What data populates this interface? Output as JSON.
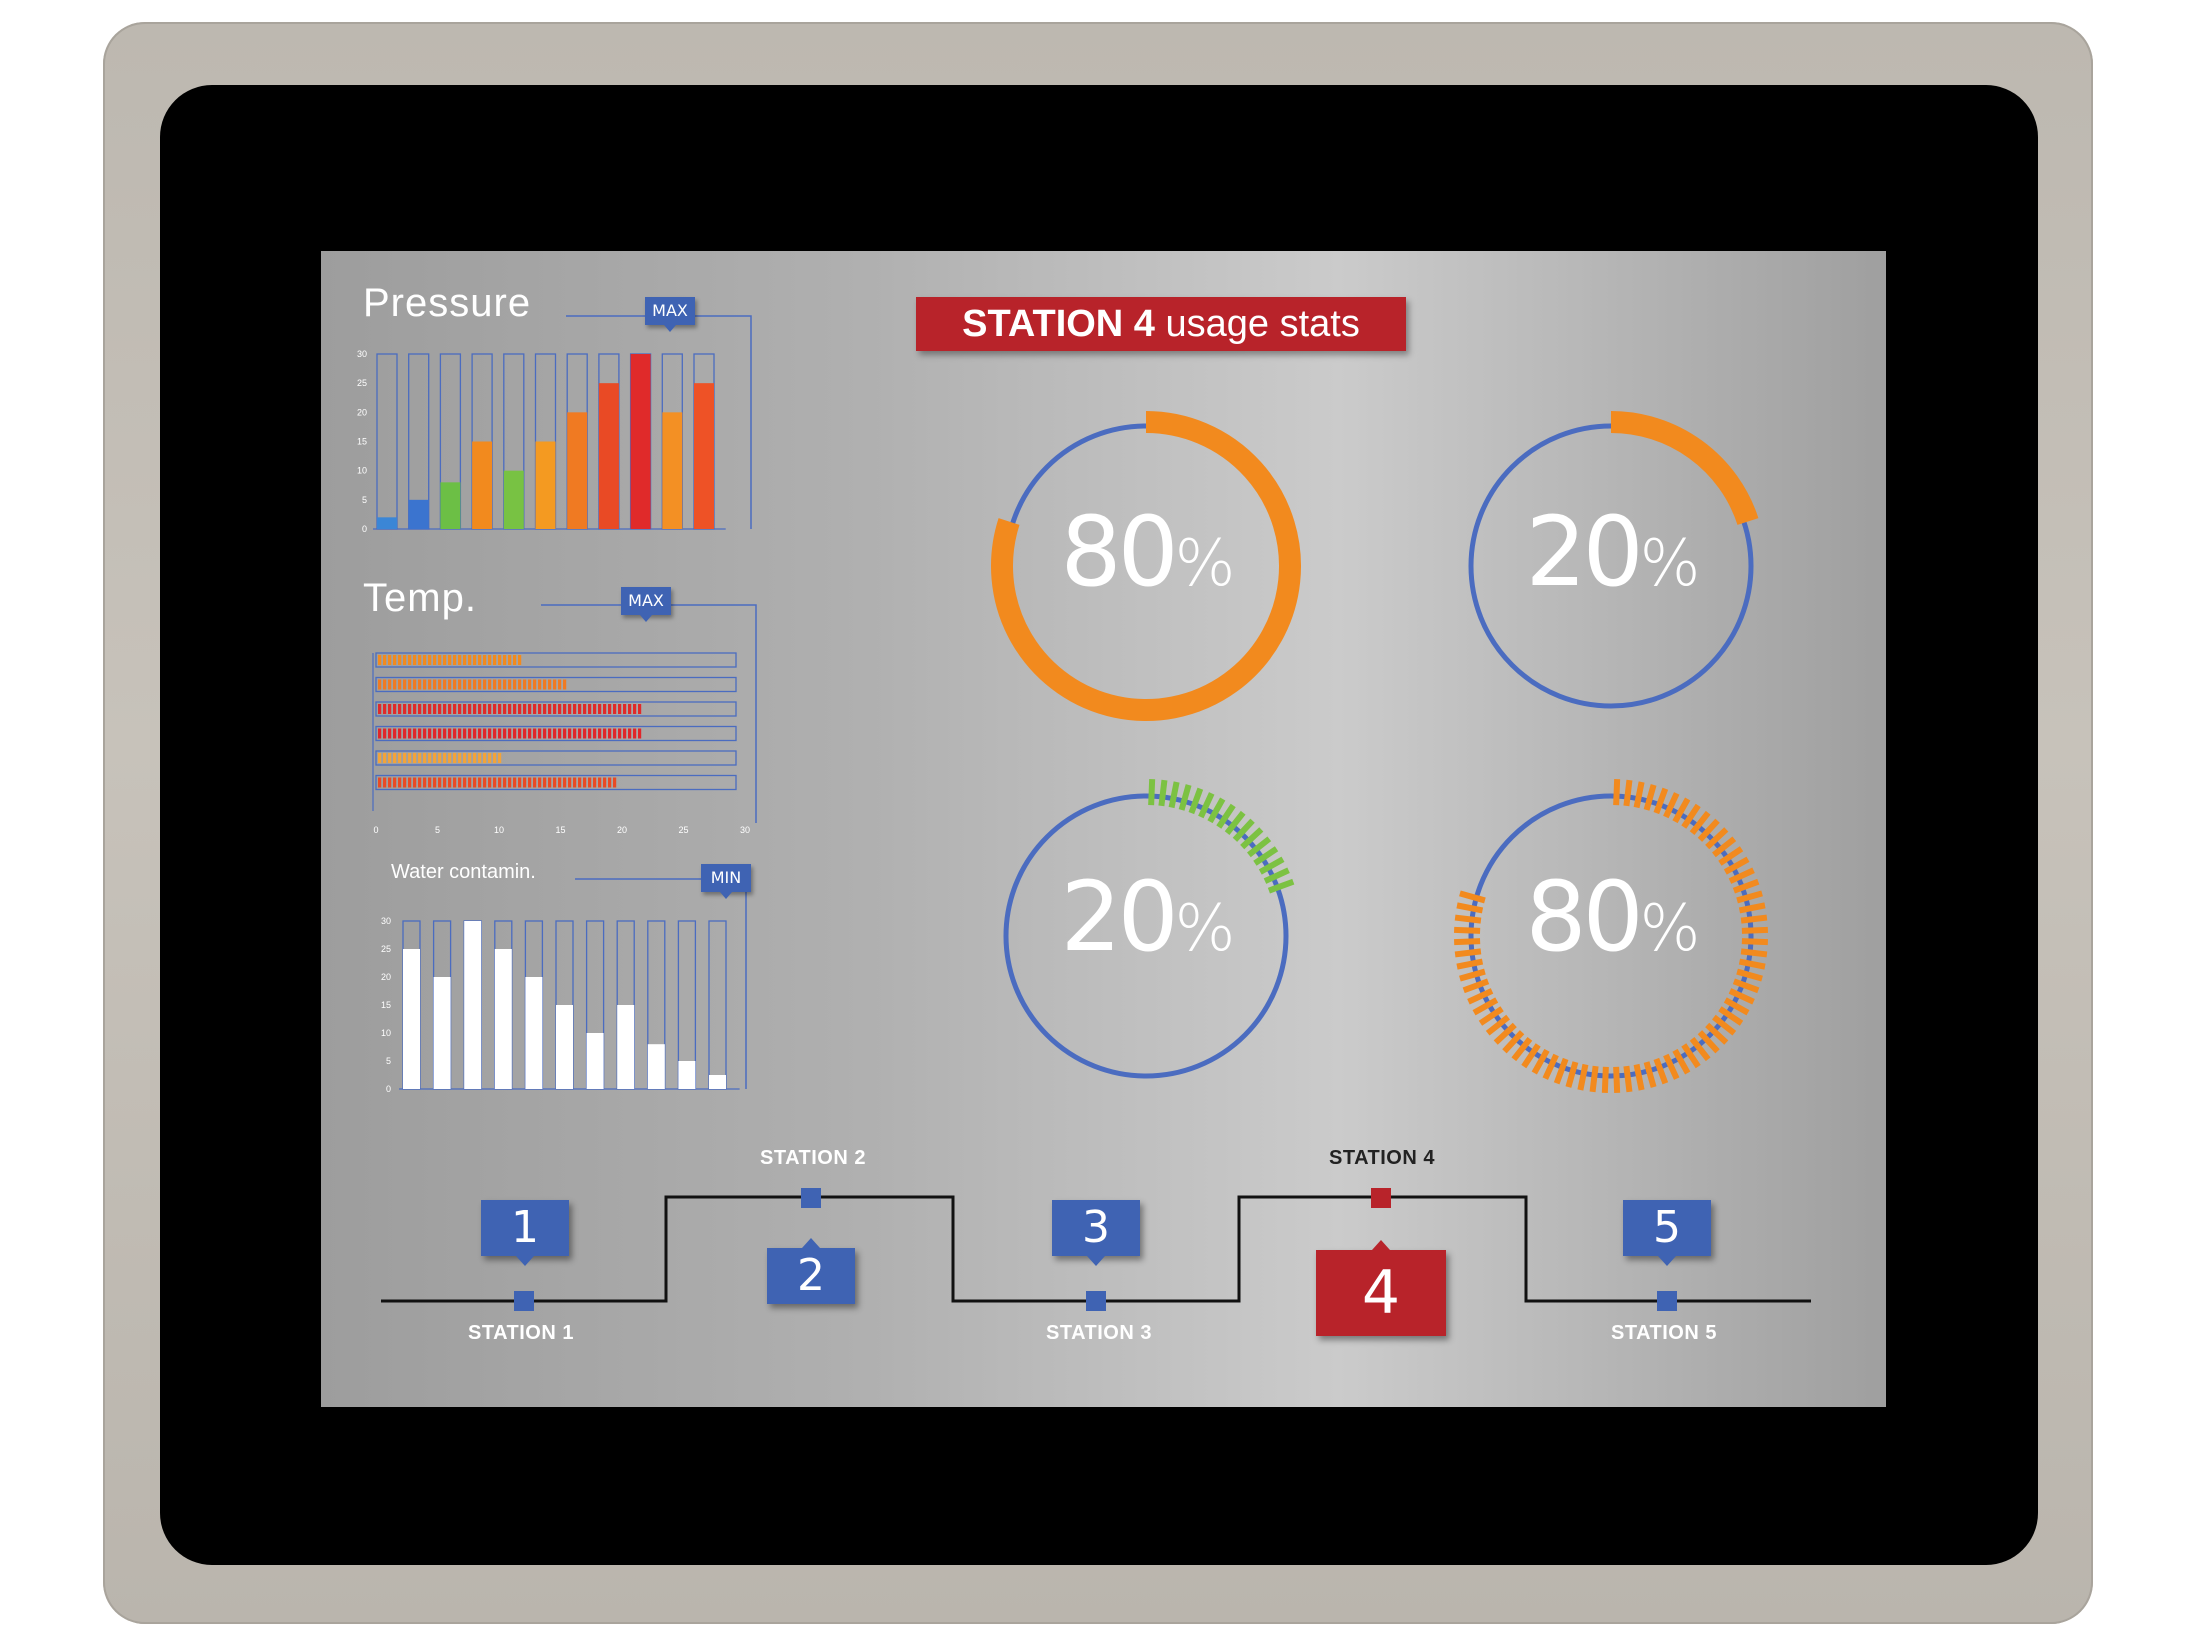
{
  "pressure_chart": {
    "title": "Pressure",
    "tag": "MAX",
    "y_ticks": [
      "30",
      "25",
      "20",
      "15",
      "10",
      "5",
      "0"
    ],
    "chart_data": {
      "type": "bar",
      "ylim": [
        0,
        30
      ],
      "values": [
        2,
        5,
        8,
        15,
        10,
        15,
        20,
        25,
        30,
        20,
        25
      ],
      "colors": [
        "#3b86d6",
        "#3b74cf",
        "#6cbf45",
        "#f28a1e",
        "#78c243",
        "#f49a21",
        "#f07a22",
        "#e94a25",
        "#e02a2a",
        "#f39024",
        "#ee5226"
      ]
    }
  },
  "temp_chart": {
    "title": "Temp.",
    "tag": "MAX",
    "x_ticks": [
      "0",
      "5",
      "10",
      "15",
      "20",
      "25",
      "30"
    ],
    "chart_data": {
      "type": "bar",
      "orientation": "horizontal",
      "xlim": [
        0,
        30
      ],
      "values": [
        12,
        15.5,
        21.5,
        21.5,
        10,
        19.5
      ],
      "colors": [
        "#f28a1e",
        "#f07a22",
        "#e02a2a",
        "#e0262a",
        "#f2a33a",
        "#e94a25"
      ]
    }
  },
  "water_chart": {
    "title": "Water contamin.",
    "tag": "MIN",
    "y_ticks": [
      "30",
      "25",
      "20",
      "15",
      "10",
      "5",
      "0"
    ],
    "chart_data": {
      "type": "bar",
      "ylim": [
        0,
        30
      ],
      "values": [
        25,
        20,
        30,
        25,
        20,
        15,
        10,
        15,
        8,
        5,
        2.5
      ]
    }
  },
  "banner": {
    "bold": "STATION 4",
    "rest": " usage stats"
  },
  "gauges": [
    {
      "value": "80",
      "unit": "%",
      "fraction": 0.8,
      "color": "#f28a1e",
      "style": "solid"
    },
    {
      "value": "20",
      "unit": "%",
      "fraction": 0.2,
      "color": "#f28a1e",
      "style": "solid"
    },
    {
      "value": "20",
      "unit": "%",
      "fraction": 0.2,
      "color": "#7cc242",
      "style": "segmented"
    },
    {
      "value": "80",
      "unit": "%",
      "fraction": 0.8,
      "color": "#f28a1e",
      "style": "segmented"
    }
  ],
  "stations": [
    {
      "number": "1",
      "label": "STATION 1"
    },
    {
      "number": "2",
      "label": "STATION 2"
    },
    {
      "number": "3",
      "label": "STATION 3"
    },
    {
      "number": "4",
      "label": "STATION 4",
      "active": true
    },
    {
      "number": "5",
      "label": "STATION 5"
    }
  ]
}
